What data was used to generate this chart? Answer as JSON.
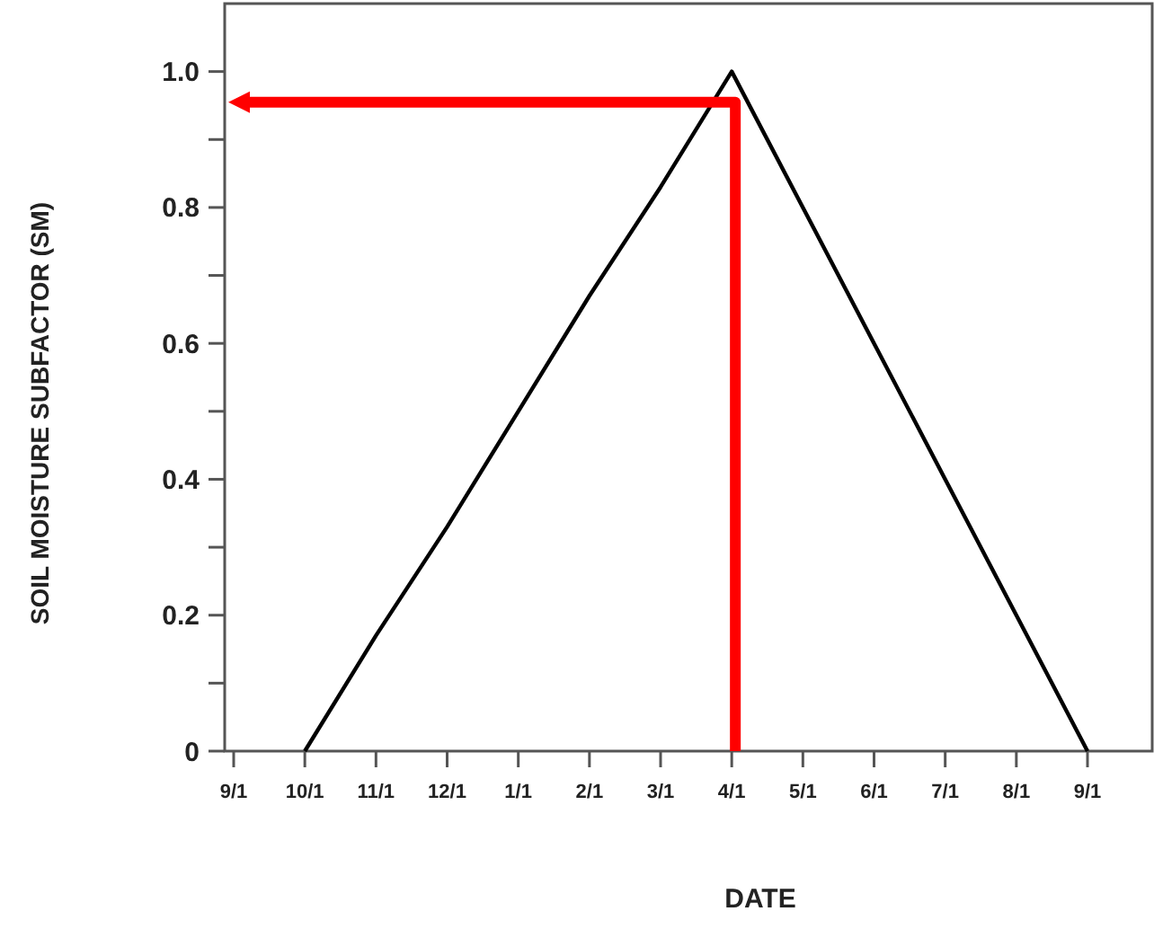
{
  "chart_data": {
    "type": "line",
    "xlabel": "DATE",
    "ylabel": "SOIL MOISTURE SUBFACTOR (SM)",
    "categories": [
      "9/1",
      "10/1",
      "11/1",
      "12/1",
      "1/1",
      "2/1",
      "3/1",
      "4/1",
      "5/1",
      "6/1",
      "7/1",
      "8/1",
      "9/1"
    ],
    "ylim": [
      0,
      1.1
    ],
    "yticks": [
      0,
      {
        "value": 0.1,
        "label": null
      },
      0.2,
      {
        "value": 0.3,
        "label": null
      },
      0.4,
      {
        "value": 0.5,
        "label": null
      },
      0.6,
      {
        "value": 0.7,
        "label": null
      },
      0.8,
      {
        "value": 0.9,
        "label": null
      },
      {
        "value": 1,
        "label": "1.0"
      }
    ],
    "grid": false,
    "series": [
      {
        "color": "#000000",
        "values": [
          null,
          0,
          0.17,
          0.33,
          0.5,
          0.67,
          0.83,
          1,
          0.8,
          0.6,
          0.4,
          0.2,
          0
        ]
      }
    ]
  }
}
